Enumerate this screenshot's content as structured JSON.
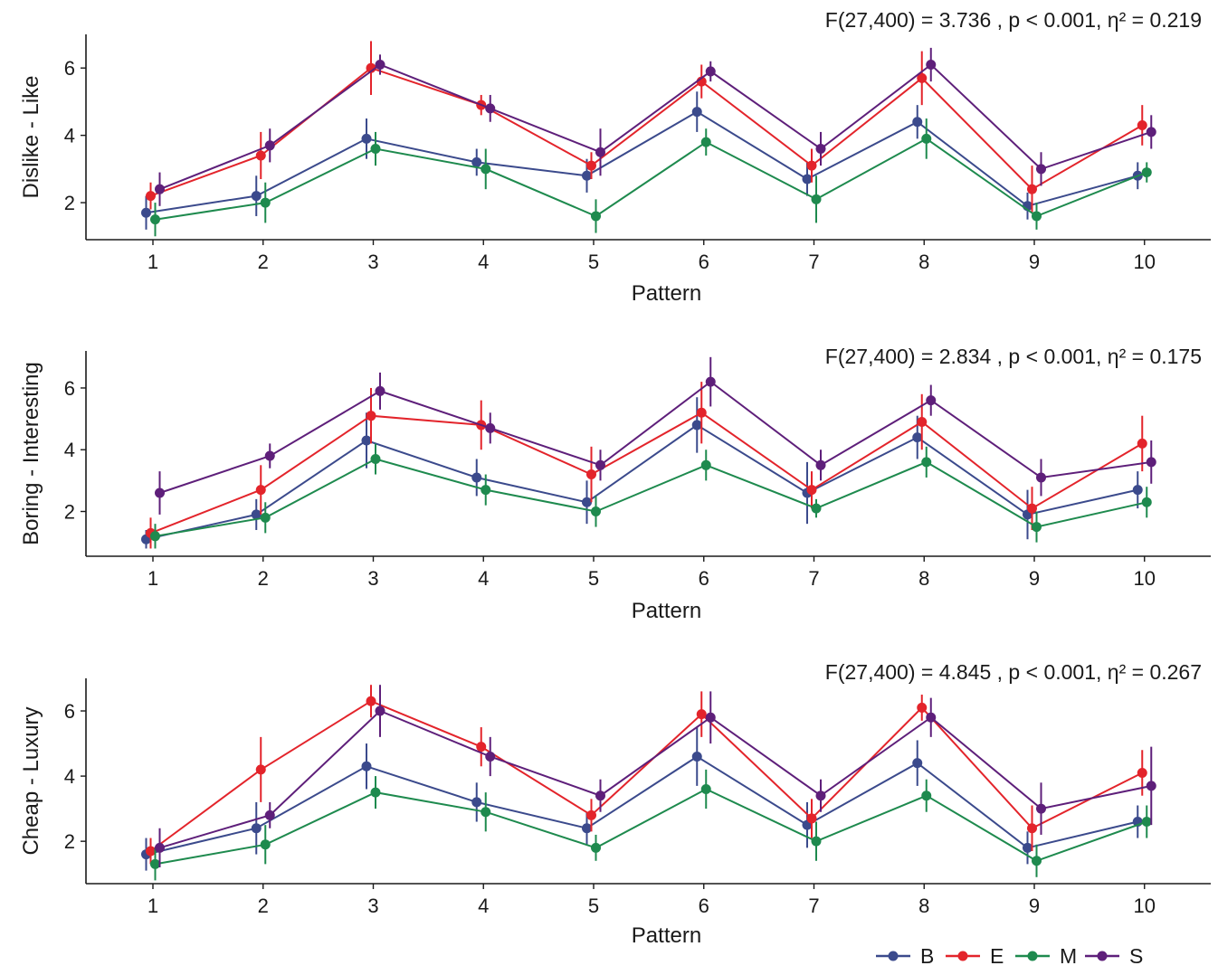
{
  "chart_data": [
    {
      "type": "line",
      "ylabel": "Dislike - Like",
      "xlabel": "Pattern",
      "annotation": "F(27,400) = 3.736 , p < 0.001, η² = 0.219",
      "categories": [
        "1",
        "2",
        "3",
        "4",
        "5",
        "6",
        "7",
        "8",
        "9",
        "10"
      ],
      "ylim": [
        0.9,
        7.0
      ],
      "yticks": [
        2,
        4,
        6
      ],
      "series": [
        {
          "name": "B",
          "values": [
            1.7,
            2.2,
            3.9,
            3.2,
            2.8,
            4.7,
            2.7,
            4.4,
            1.9,
            2.8
          ],
          "err": [
            0.5,
            0.6,
            0.6,
            0.4,
            0.5,
            0.6,
            0.5,
            0.5,
            0.4,
            0.4
          ]
        },
        {
          "name": "E",
          "values": [
            2.2,
            3.4,
            6.0,
            4.9,
            3.1,
            5.6,
            3.1,
            5.7,
            2.4,
            4.3
          ],
          "err": [
            0.4,
            0.7,
            0.8,
            0.3,
            0.4,
            0.5,
            0.5,
            0.8,
            0.7,
            0.6
          ]
        },
        {
          "name": "M",
          "values": [
            1.5,
            2.0,
            3.6,
            3.0,
            1.6,
            3.8,
            2.1,
            3.9,
            1.6,
            2.9
          ],
          "err": [
            0.5,
            0.6,
            0.5,
            0.6,
            0.5,
            0.4,
            0.7,
            0.6,
            0.4,
            0.3
          ]
        },
        {
          "name": "S",
          "values": [
            2.4,
            3.7,
            6.1,
            4.8,
            3.5,
            5.9,
            3.6,
            6.1,
            3.0,
            4.1
          ],
          "err": [
            0.5,
            0.5,
            0.3,
            0.4,
            0.7,
            0.3,
            0.5,
            0.5,
            0.5,
            0.5
          ]
        }
      ]
    },
    {
      "type": "line",
      "ylabel": "Boring - Interesting",
      "xlabel": "Pattern",
      "annotation": "F(27,400) = 2.834 , p < 0.001, η² = 0.175",
      "categories": [
        "1",
        "2",
        "3",
        "4",
        "5",
        "6",
        "7",
        "8",
        "9",
        "10"
      ],
      "ylim": [
        0.55,
        7.2
      ],
      "yticks": [
        2,
        4,
        6
      ],
      "series": [
        {
          "name": "B",
          "values": [
            1.1,
            1.9,
            4.3,
            3.1,
            2.3,
            4.8,
            2.6,
            4.4,
            1.9,
            2.7
          ],
          "err": [
            0.3,
            0.5,
            0.9,
            0.6,
            0.7,
            0.9,
            1.0,
            0.7,
            0.8,
            0.6
          ]
        },
        {
          "name": "E",
          "values": [
            1.3,
            2.7,
            5.1,
            4.8,
            3.2,
            5.2,
            2.7,
            4.9,
            2.1,
            4.2
          ],
          "err": [
            0.5,
            0.8,
            0.9,
            0.8,
            0.9,
            1.0,
            0.6,
            0.9,
            0.7,
            0.9
          ]
        },
        {
          "name": "M",
          "values": [
            1.2,
            1.8,
            3.7,
            2.7,
            2.0,
            3.5,
            2.1,
            3.6,
            1.5,
            2.3
          ],
          "err": [
            0.4,
            0.5,
            0.5,
            0.5,
            0.5,
            0.5,
            0.3,
            0.5,
            0.5,
            0.5
          ]
        },
        {
          "name": "S",
          "values": [
            2.6,
            3.8,
            5.9,
            4.7,
            3.5,
            6.2,
            3.5,
            5.6,
            3.1,
            3.6
          ],
          "err": [
            0.7,
            0.4,
            0.6,
            0.5,
            0.5,
            0.8,
            0.5,
            0.5,
            0.6,
            0.7
          ]
        }
      ]
    },
    {
      "type": "line",
      "ylabel": "Cheap - Luxury",
      "xlabel": "Pattern",
      "annotation": "F(27,400) = 4.845 , p < 0.001, η² = 0.267",
      "categories": [
        "1",
        "2",
        "3",
        "4",
        "5",
        "6",
        "7",
        "8",
        "9",
        "10"
      ],
      "ylim": [
        0.7,
        7.0
      ],
      "yticks": [
        2,
        4,
        6
      ],
      "series": [
        {
          "name": "B",
          "values": [
            1.6,
            2.4,
            4.3,
            3.2,
            2.4,
            4.6,
            2.5,
            4.4,
            1.8,
            2.6
          ],
          "err": [
            0.5,
            0.8,
            0.7,
            0.6,
            0.5,
            0.9,
            0.7,
            0.7,
            0.5,
            0.5
          ]
        },
        {
          "name": "E",
          "values": [
            1.7,
            4.2,
            6.3,
            4.9,
            2.8,
            5.9,
            2.7,
            6.1,
            2.4,
            4.1
          ],
          "err": [
            0.4,
            1.0,
            0.5,
            0.6,
            0.5,
            0.7,
            0.6,
            0.4,
            0.7,
            0.7
          ]
        },
        {
          "name": "M",
          "values": [
            1.3,
            1.9,
            3.5,
            2.9,
            1.8,
            3.6,
            2.0,
            3.4,
            1.4,
            2.6
          ],
          "err": [
            0.5,
            0.6,
            0.5,
            0.6,
            0.4,
            0.6,
            0.6,
            0.5,
            0.5,
            0.5
          ]
        },
        {
          "name": "S",
          "values": [
            1.8,
            2.8,
            6.0,
            4.6,
            3.4,
            5.8,
            3.4,
            5.8,
            3.0,
            3.7
          ],
          "err": [
            0.6,
            0.4,
            0.8,
            0.6,
            0.5,
            0.8,
            0.5,
            0.6,
            0.8,
            1.2
          ]
        }
      ]
    }
  ],
  "legend": {
    "entries": [
      {
        "name": "B",
        "color": "#3b4a8c"
      },
      {
        "name": "E",
        "color": "#e3242b"
      },
      {
        "name": "M",
        "color": "#1e8a4e"
      },
      {
        "name": "S",
        "color": "#5e1f7a"
      }
    ]
  }
}
